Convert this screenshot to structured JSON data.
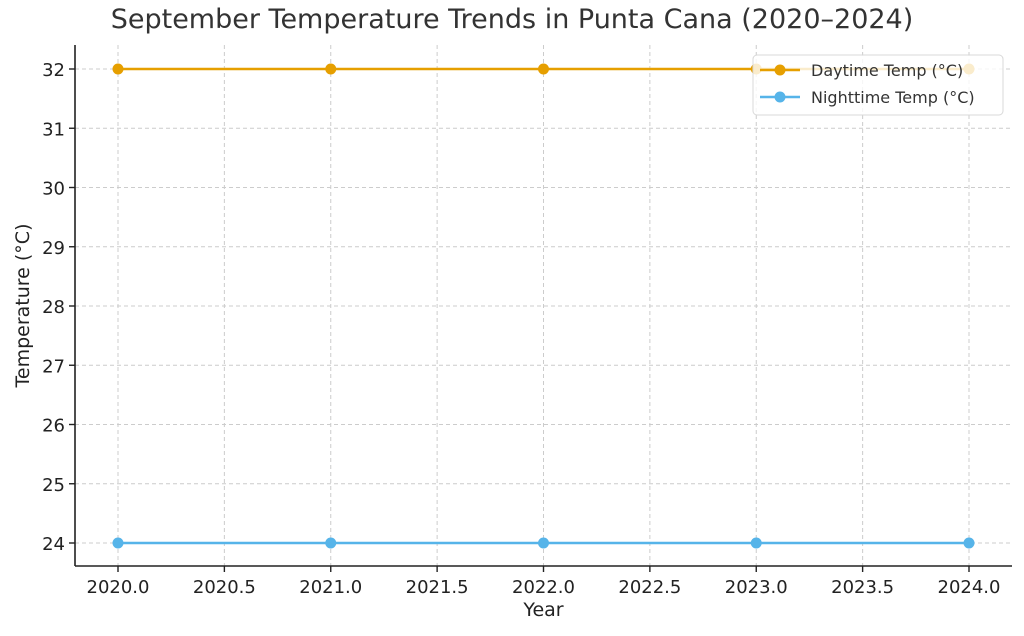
{
  "chart_data": {
    "type": "line",
    "title": "September Temperature Trends in Punta Cana (2020–2024)",
    "xlabel": "Year",
    "ylabel": "Temperature (°C)",
    "x": [
      2020,
      2021,
      2022,
      2023,
      2024
    ],
    "series": [
      {
        "name": "Daytime Temp (°C)",
        "color": "#E69F00",
        "values": [
          32,
          32,
          32,
          32,
          32
        ]
      },
      {
        "name": "Nighttime Temp (°C)",
        "color": "#56B4E9",
        "values": [
          24,
          24,
          24,
          24,
          24
        ]
      }
    ],
    "xticks": [
      "2020.0",
      "2020.5",
      "2021.0",
      "2021.5",
      "2022.0",
      "2022.5",
      "2023.0",
      "2023.5",
      "2024.0"
    ],
    "yticks": [
      "24",
      "25",
      "26",
      "27",
      "28",
      "29",
      "30",
      "31",
      "32"
    ],
    "ylim": [
      23.6,
      32.4
    ],
    "xlim": [
      2019.8,
      2024.2
    ],
    "grid": true,
    "legend_position": "upper right"
  }
}
